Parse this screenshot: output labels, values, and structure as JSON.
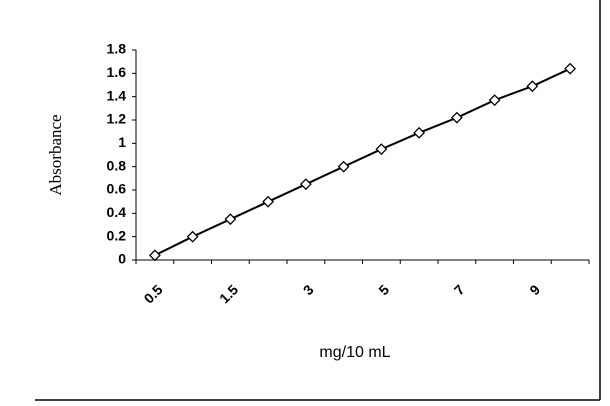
{
  "chart_data": {
    "type": "line",
    "categories": [
      "0.5",
      null,
      "1.5",
      null,
      "3",
      null,
      "5",
      null,
      "7",
      null,
      "9",
      null
    ],
    "series": [
      {
        "color": "#000000",
        "values": [
          0.04,
          0.2,
          0.35,
          0.5,
          0.65,
          0.8,
          0.95,
          1.09,
          1.22,
          1.37,
          1.49,
          1.64
        ]
      }
    ],
    "ylim": [
      0,
      1.8
    ],
    "yticks": [
      0,
      0.2,
      0.4,
      0.6,
      0.8,
      1,
      1.2,
      1.4,
      1.6,
      1.8
    ],
    "x_label": "mg/10 mL",
    "y_label": "Absorbance",
    "grid": false
  }
}
